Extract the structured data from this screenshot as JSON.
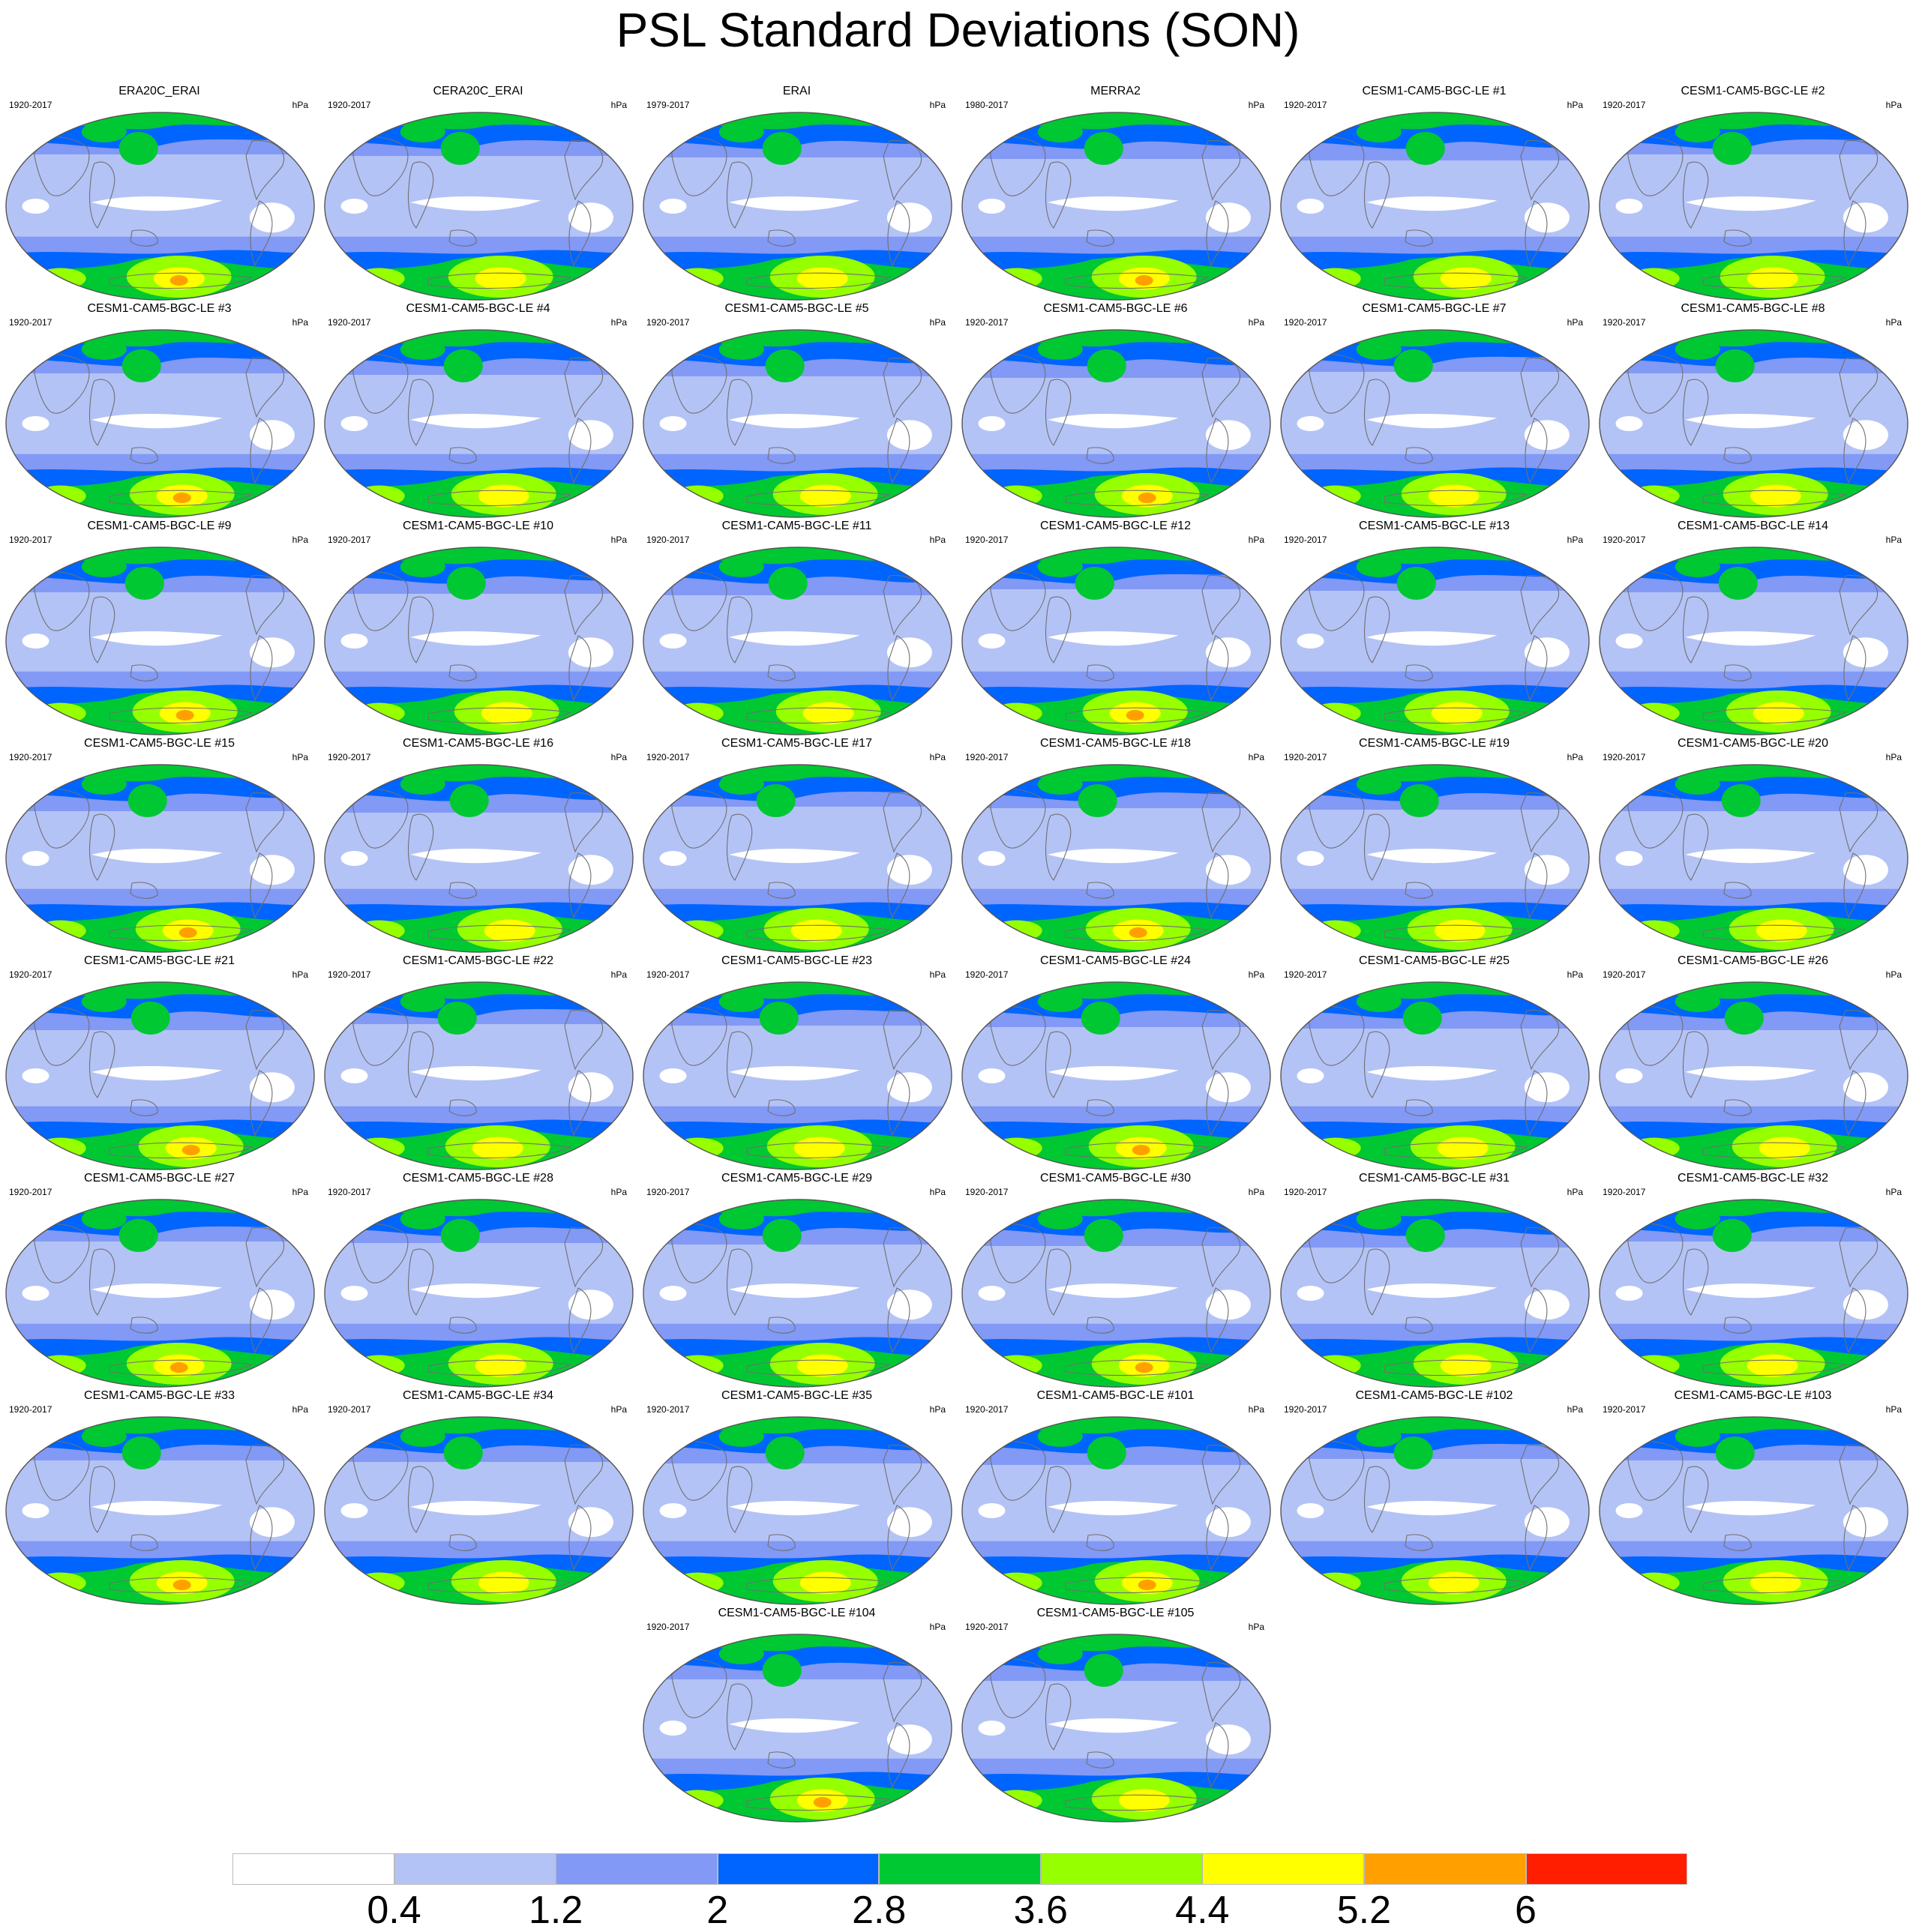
{
  "title": "PSL Standard Deviations (SON)",
  "panel_units": "hPa",
  "panels": [
    {
      "label": "ERA20C_ERAI",
      "years": "1920-2017"
    },
    {
      "label": "CERA20C_ERAI",
      "years": "1920-2017"
    },
    {
      "label": "ERAI",
      "years": "1979-2017"
    },
    {
      "label": "MERRA2",
      "years": "1980-2017"
    },
    {
      "label": "CESM1-CAM5-BGC-LE #1",
      "years": "1920-2017"
    },
    {
      "label": "CESM1-CAM5-BGC-LE #2",
      "years": "1920-2017"
    },
    {
      "label": "CESM1-CAM5-BGC-LE #3",
      "years": "1920-2017"
    },
    {
      "label": "CESM1-CAM5-BGC-LE #4",
      "years": "1920-2017"
    },
    {
      "label": "CESM1-CAM5-BGC-LE #5",
      "years": "1920-2017"
    },
    {
      "label": "CESM1-CAM5-BGC-LE #6",
      "years": "1920-2017"
    },
    {
      "label": "CESM1-CAM5-BGC-LE #7",
      "years": "1920-2017"
    },
    {
      "label": "CESM1-CAM5-BGC-LE #8",
      "years": "1920-2017"
    },
    {
      "label": "CESM1-CAM5-BGC-LE #9",
      "years": "1920-2017"
    },
    {
      "label": "CESM1-CAM5-BGC-LE #10",
      "years": "1920-2017"
    },
    {
      "label": "CESM1-CAM5-BGC-LE #11",
      "years": "1920-2017"
    },
    {
      "label": "CESM1-CAM5-BGC-LE #12",
      "years": "1920-2017"
    },
    {
      "label": "CESM1-CAM5-BGC-LE #13",
      "years": "1920-2017"
    },
    {
      "label": "CESM1-CAM5-BGC-LE #14",
      "years": "1920-2017"
    },
    {
      "label": "CESM1-CAM5-BGC-LE #15",
      "years": "1920-2017"
    },
    {
      "label": "CESM1-CAM5-BGC-LE #16",
      "years": "1920-2017"
    },
    {
      "label": "CESM1-CAM5-BGC-LE #17",
      "years": "1920-2017"
    },
    {
      "label": "CESM1-CAM5-BGC-LE #18",
      "years": "1920-2017"
    },
    {
      "label": "CESM1-CAM5-BGC-LE #19",
      "years": "1920-2017"
    },
    {
      "label": "CESM1-CAM5-BGC-LE #20",
      "years": "1920-2017"
    },
    {
      "label": "CESM1-CAM5-BGC-LE #21",
      "years": "1920-2017"
    },
    {
      "label": "CESM1-CAM5-BGC-LE #22",
      "years": "1920-2017"
    },
    {
      "label": "CESM1-CAM5-BGC-LE #23",
      "years": "1920-2017"
    },
    {
      "label": "CESM1-CAM5-BGC-LE #24",
      "years": "1920-2017"
    },
    {
      "label": "CESM1-CAM5-BGC-LE #25",
      "years": "1920-2017"
    },
    {
      "label": "CESM1-CAM5-BGC-LE #26",
      "years": "1920-2017"
    },
    {
      "label": "CESM1-CAM5-BGC-LE #27",
      "years": "1920-2017"
    },
    {
      "label": "CESM1-CAM5-BGC-LE #28",
      "years": "1920-2017"
    },
    {
      "label": "CESM1-CAM5-BGC-LE #29",
      "years": "1920-2017"
    },
    {
      "label": "CESM1-CAM5-BGC-LE #30",
      "years": "1920-2017"
    },
    {
      "label": "CESM1-CAM5-BGC-LE #31",
      "years": "1920-2017"
    },
    {
      "label": "CESM1-CAM5-BGC-LE #32",
      "years": "1920-2017"
    },
    {
      "label": "CESM1-CAM5-BGC-LE #33",
      "years": "1920-2017"
    },
    {
      "label": "CESM1-CAM5-BGC-LE #34",
      "years": "1920-2017"
    },
    {
      "label": "CESM1-CAM5-BGC-LE #35",
      "years": "1920-2017"
    },
    {
      "label": "CESM1-CAM5-BGC-LE #101",
      "years": "1920-2017"
    },
    {
      "label": "CESM1-CAM5-BGC-LE #102",
      "years": "1920-2017"
    },
    {
      "label": "CESM1-CAM5-BGC-LE #103",
      "years": "1920-2017"
    },
    {
      "label": "CESM1-CAM5-BGC-LE #104",
      "years": "1920-2017"
    },
    {
      "label": "CESM1-CAM5-BGC-LE #105",
      "years": "1920-2017"
    }
  ],
  "colorbar": {
    "labels": [
      "0.4",
      "1.2",
      "2",
      "2.8",
      "3.6",
      "4.4",
      "5.2",
      "6"
    ],
    "colors": [
      "#ffffff",
      "#b4c3f6",
      "#8299f5",
      "#0064ff",
      "#00c832",
      "#96ff00",
      "#ffff00",
      "#ffa000",
      "#ff1e00"
    ]
  }
}
